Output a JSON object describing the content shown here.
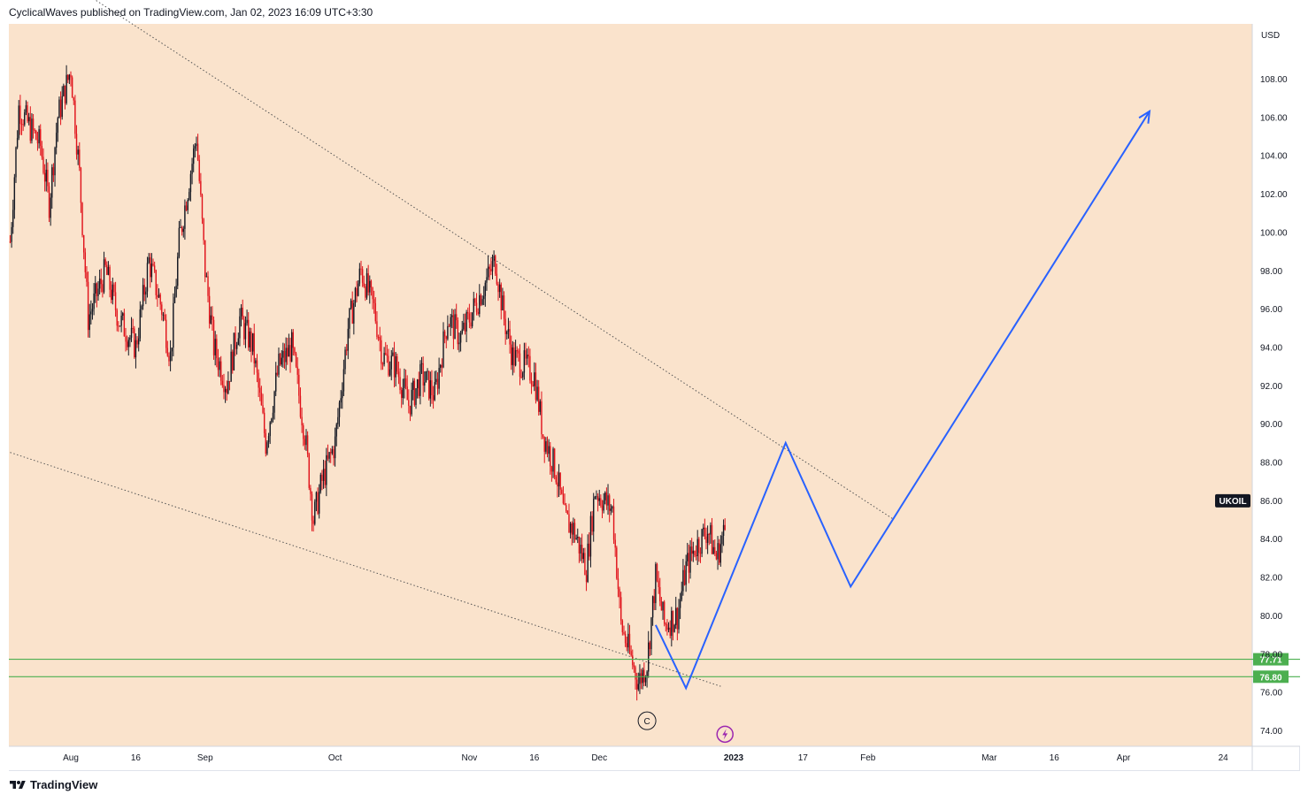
{
  "header": {
    "publisher_line": "CyclicalWaves published on TradingView.com, Jan 02, 2023 16:09 UTC+3:30"
  },
  "footer": {
    "brand": "TradingView",
    "logo_icon": "tradingview-logo-icon"
  },
  "colors": {
    "background": "#fae3cc",
    "candle_up": "#131722",
    "candle_down": "#e0131b",
    "projection": "#2962ff",
    "support_line": "#4caf50",
    "trendline": "#555555",
    "symbol_label_bg": "#131722"
  },
  "chart_data": {
    "type": "candlestick",
    "symbol": "UKOIL",
    "currency": "USD",
    "ylim": [
      73,
      110
    ],
    "y_ticks": [
      "74.00",
      "76.00",
      "78.00",
      "80.00",
      "82.00",
      "84.00",
      "86.00",
      "88.00",
      "90.00",
      "92.00",
      "94.00",
      "96.00",
      "98.00",
      "100.00",
      "102.00",
      "104.00",
      "106.00",
      "108.00"
    ],
    "x_ticks": [
      "Aug",
      "16",
      "Sep",
      "Oct",
      "Nov",
      "16",
      "Dec",
      "2023",
      "17",
      "Feb",
      "Mar",
      "16",
      "Apr",
      "24"
    ],
    "x_tick_dates": [
      "2022-08-01",
      "2022-08-16",
      "2022-09-01",
      "2022-10-01",
      "2022-11-01",
      "2022-11-16",
      "2022-12-01",
      "2023-01-01",
      "2023-01-17",
      "2023-02-01",
      "2023-03-01",
      "2023-03-16",
      "2023-04-01",
      "2023-04-24"
    ],
    "x_range": [
      "2022-07-18",
      "2023-05-01"
    ],
    "price_path": [
      [
        "2022-07-18",
        99.5
      ],
      [
        "2022-07-20",
        106.5
      ],
      [
        "2022-07-25",
        104.5
      ],
      [
        "2022-07-27",
        101.5
      ],
      [
        "2022-07-29",
        106.0
      ],
      [
        "2022-08-01",
        108.5
      ],
      [
        "2022-08-03",
        103.0
      ],
      [
        "2022-08-05",
        95.5
      ],
      [
        "2022-08-09",
        98.0
      ],
      [
        "2022-08-12",
        95.5
      ],
      [
        "2022-08-16",
        94.0
      ],
      [
        "2022-08-19",
        98.5
      ],
      [
        "2022-08-22",
        96.0
      ],
      [
        "2022-08-24",
        93.5
      ],
      [
        "2022-08-26",
        99.5
      ],
      [
        "2022-08-30",
        105.0
      ],
      [
        "2022-09-01",
        98.0
      ],
      [
        "2022-09-03",
        94.0
      ],
      [
        "2022-09-06",
        92.0
      ],
      [
        "2022-09-09",
        95.5
      ],
      [
        "2022-09-12",
        94.0
      ],
      [
        "2022-09-15",
        89.0
      ],
      [
        "2022-09-18",
        93.0
      ],
      [
        "2022-09-21",
        94.0
      ],
      [
        "2022-09-24",
        89.5
      ],
      [
        "2022-09-26",
        85.0
      ],
      [
        "2022-09-28",
        87.0
      ],
      [
        "2022-10-01",
        89.0
      ],
      [
        "2022-10-04",
        95.0
      ],
      [
        "2022-10-07",
        98.0
      ],
      [
        "2022-10-10",
        96.0
      ],
      [
        "2022-10-12",
        93.5
      ],
      [
        "2022-10-15",
        93.0
      ],
      [
        "2022-10-18",
        91.0
      ],
      [
        "2022-10-21",
        92.5
      ],
      [
        "2022-10-24",
        91.5
      ],
      [
        "2022-10-27",
        95.5
      ],
      [
        "2022-10-30",
        94.5
      ],
      [
        "2022-11-03",
        96.5
      ],
      [
        "2022-11-07",
        98.5
      ],
      [
        "2022-11-09",
        95.5
      ],
      [
        "2022-11-11",
        93.5
      ],
      [
        "2022-11-14",
        93.0
      ],
      [
        "2022-11-16",
        92.5
      ],
      [
        "2022-11-18",
        89.5
      ],
      [
        "2022-11-21",
        87.5
      ],
      [
        "2022-11-23",
        85.0
      ],
      [
        "2022-11-25",
        84.5
      ],
      [
        "2022-11-28",
        82.5
      ],
      [
        "2022-11-30",
        86.5
      ],
      [
        "2022-12-02",
        86.0
      ],
      [
        "2022-12-04",
        85.5
      ],
      [
        "2022-12-06",
        79.5
      ],
      [
        "2022-12-08",
        78.0
      ],
      [
        "2022-12-10",
        76.5
      ],
      [
        "2022-12-12",
        77.5
      ],
      [
        "2022-12-14",
        82.0
      ],
      [
        "2022-12-16",
        79.5
      ],
      [
        "2022-12-19",
        80.0
      ],
      [
        "2022-12-21",
        82.5
      ],
      [
        "2022-12-23",
        83.5
      ],
      [
        "2022-12-26",
        84.5
      ],
      [
        "2022-12-28",
        83.0
      ],
      [
        "2022-12-30",
        84.5
      ]
    ],
    "projection_path": [
      [
        "2022-12-14",
        79.5
      ],
      [
        "2022-12-21",
        76.2
      ],
      [
        "2023-01-13",
        89.0
      ],
      [
        "2023-01-28",
        81.5
      ],
      [
        "2023-04-07",
        106.3
      ]
    ],
    "upper_trendline": [
      [
        "2022-07-18",
        115.0
      ],
      [
        "2023-02-07",
        85.0
      ]
    ],
    "lower_trendline": [
      [
        "2022-07-18",
        88.5
      ],
      [
        "2022-12-29",
        76.3
      ]
    ],
    "horizontal_levels": [
      {
        "label": "77.71",
        "value": 77.71
      },
      {
        "label": "76.80",
        "value": 76.8
      }
    ],
    "last_price_label": "UKOIL",
    "last_price": 86.0,
    "wave_label": {
      "text": "C",
      "date": "2022-12-12",
      "value": 74.5
    },
    "lightning_icon": {
      "name": "lightning-icon",
      "date": "2022-12-30",
      "value": 73.8
    }
  }
}
